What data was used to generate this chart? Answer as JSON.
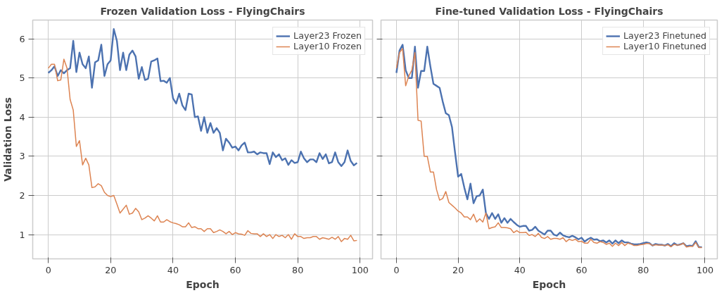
{
  "chart_data": [
    {
      "type": "line",
      "title": "Frozen Validation Loss - FlyingChairs",
      "xlabel": "Epoch",
      "ylabel": "Validation Loss",
      "x": [
        0,
        1,
        2,
        3,
        4,
        5,
        6,
        7,
        8,
        9,
        10,
        11,
        12,
        13,
        14,
        15,
        16,
        17,
        18,
        19,
        20,
        21,
        22,
        23,
        24,
        25,
        26,
        27,
        28,
        29,
        30,
        31,
        32,
        33,
        34,
        35,
        36,
        37,
        38,
        39,
        40,
        41,
        42,
        43,
        44,
        45,
        46,
        47,
        48,
        49,
        50,
        51,
        52,
        53,
        54,
        55,
        56,
        57,
        58,
        59,
        60,
        61,
        62,
        63,
        64,
        65,
        66,
        67,
        68,
        69,
        70,
        71,
        72,
        73,
        74,
        75,
        76,
        77,
        78,
        79,
        80,
        81,
        82,
        83,
        84,
        85,
        86,
        87,
        88,
        89,
        90,
        91,
        92,
        93,
        94,
        95,
        96,
        97,
        98,
        99
      ],
      "series": [
        {
          "name": "Layer23 Frozen",
          "color": "#4c72b0",
          "values": [
            5.13,
            5.2,
            5.3,
            5.05,
            5.2,
            5.12,
            5.2,
            5.25,
            5.95,
            5.15,
            5.65,
            5.35,
            5.25,
            5.55,
            4.75,
            5.4,
            5.45,
            5.85,
            5.05,
            5.35,
            5.45,
            6.25,
            5.95,
            5.2,
            5.65,
            5.2,
            5.6,
            5.7,
            5.55,
            4.98,
            5.28,
            4.95,
            4.98,
            5.42,
            5.45,
            5.5,
            4.92,
            4.93,
            4.88,
            5.0,
            4.48,
            4.35,
            4.6,
            4.3,
            4.18,
            4.6,
            4.58,
            4.0,
            4.02,
            3.65,
            4.0,
            3.6,
            3.85,
            3.6,
            3.72,
            3.6,
            3.15,
            3.45,
            3.35,
            3.22,
            3.25,
            3.15,
            3.28,
            3.35,
            3.1,
            3.1,
            3.12,
            3.05,
            3.1,
            3.08,
            3.08,
            2.8,
            3.1,
            2.98,
            3.05,
            2.9,
            2.95,
            2.78,
            2.9,
            2.83,
            2.85,
            3.12,
            2.95,
            2.85,
            2.92,
            2.92,
            2.85,
            3.08,
            2.93,
            3.05,
            2.82,
            2.85,
            3.1,
            2.85,
            2.75,
            2.85,
            3.15,
            2.88,
            2.77,
            2.83
          ]
        },
        {
          "name": "Layer10 Frozen",
          "color": "#dd8452",
          "values": [
            5.25,
            5.35,
            5.35,
            4.93,
            4.95,
            5.48,
            5.25,
            4.45,
            4.18,
            3.25,
            3.4,
            2.78,
            2.95,
            2.78,
            2.2,
            2.22,
            2.3,
            2.25,
            2.08,
            2.0,
            1.97,
            2.0,
            1.78,
            1.55,
            1.65,
            1.75,
            1.52,
            1.55,
            1.67,
            1.58,
            1.38,
            1.42,
            1.48,
            1.42,
            1.35,
            1.48,
            1.32,
            1.32,
            1.38,
            1.33,
            1.3,
            1.28,
            1.25,
            1.2,
            1.2,
            1.3,
            1.18,
            1.2,
            1.15,
            1.15,
            1.08,
            1.15,
            1.15,
            1.05,
            1.08,
            1.12,
            1.08,
            1.02,
            1.08,
            1.0,
            1.05,
            1.02,
            1.01,
            0.98,
            1.1,
            1.03,
            1.02,
            1.02,
            0.95,
            1.02,
            0.95,
            1.0,
            0.9,
            1.0,
            0.95,
            0.98,
            0.92,
            1.0,
            0.88,
            1.02,
            0.95,
            0.95,
            0.9,
            0.92,
            0.92,
            0.95,
            0.95,
            0.88,
            0.92,
            0.9,
            0.88,
            0.93,
            0.88,
            0.95,
            0.82,
            0.9,
            0.88,
            0.98,
            0.84,
            0.85
          ]
        }
      ],
      "xlim": [
        -5,
        104
      ],
      "ylim": [
        0.38,
        6.48
      ],
      "xticks": [
        0,
        20,
        40,
        60,
        80,
        100
      ],
      "yticks": [
        1,
        2,
        3,
        4,
        5,
        6
      ],
      "grid": true,
      "legend": "top right",
      "line_style": "solid",
      "marker": "none"
    },
    {
      "type": "line",
      "title": "Fine-tuned Validation Loss - FlyingChairs",
      "xlabel": "Epoch",
      "x": [
        0,
        1,
        2,
        3,
        4,
        5,
        6,
        7,
        8,
        9,
        10,
        11,
        12,
        13,
        14,
        15,
        16,
        17,
        18,
        19,
        20,
        21,
        22,
        23,
        24,
        25,
        26,
        27,
        28,
        29,
        30,
        31,
        32,
        33,
        34,
        35,
        36,
        37,
        38,
        39,
        40,
        41,
        42,
        43,
        44,
        45,
        46,
        47,
        48,
        49,
        50,
        51,
        52,
        53,
        54,
        55,
        56,
        57,
        58,
        59,
        60,
        61,
        62,
        63,
        64,
        65,
        66,
        67,
        68,
        69,
        70,
        71,
        72,
        73,
        74,
        75,
        76,
        77,
        78,
        79,
        80,
        81,
        82,
        83,
        84,
        85,
        86,
        87,
        88,
        89,
        90,
        91,
        92,
        93,
        94,
        95,
        96,
        97,
        98,
        99
      ],
      "series": [
        {
          "name": "Layer23 Finetuned",
          "color": "#4c72b0",
          "values": [
            5.13,
            5.7,
            5.85,
            5.2,
            5.0,
            5.0,
            5.8,
            4.75,
            5.18,
            5.18,
            5.8,
            5.3,
            4.85,
            4.8,
            4.75,
            4.4,
            4.1,
            4.05,
            3.75,
            3.1,
            2.48,
            2.55,
            2.2,
            1.9,
            2.3,
            1.8,
            1.98,
            2.0,
            2.15,
            1.55,
            1.4,
            1.55,
            1.4,
            1.52,
            1.3,
            1.42,
            1.3,
            1.4,
            1.32,
            1.25,
            1.2,
            1.22,
            1.22,
            1.1,
            1.12,
            1.2,
            1.1,
            1.05,
            1.0,
            1.1,
            1.1,
            1.0,
            0.97,
            1.05,
            0.98,
            0.95,
            0.93,
            0.97,
            0.93,
            0.88,
            0.92,
            0.82,
            0.88,
            0.92,
            0.87,
            0.88,
            0.83,
            0.85,
            0.8,
            0.85,
            0.77,
            0.85,
            0.78,
            0.85,
            0.8,
            0.8,
            0.77,
            0.75,
            0.75,
            0.76,
            0.78,
            0.8,
            0.78,
            0.72,
            0.76,
            0.74,
            0.74,
            0.72,
            0.76,
            0.7,
            0.78,
            0.73,
            0.75,
            0.78,
            0.7,
            0.72,
            0.71,
            0.83,
            0.68,
            0.68
          ]
        },
        {
          "name": "Layer10 Finetuned",
          "color": "#dd8452",
          "values": [
            5.25,
            5.65,
            5.75,
            4.8,
            5.05,
            5.2,
            5.65,
            3.92,
            3.9,
            3.0,
            3.0,
            2.6,
            2.6,
            2.15,
            1.88,
            1.92,
            2.1,
            1.82,
            1.75,
            1.68,
            1.6,
            1.55,
            1.45,
            1.45,
            1.38,
            1.52,
            1.32,
            1.4,
            1.32,
            1.55,
            1.15,
            1.18,
            1.2,
            1.3,
            1.18,
            1.18,
            1.17,
            1.15,
            1.05,
            1.1,
            1.05,
            1.05,
            1.06,
            0.98,
            1.0,
            0.95,
            1.03,
            0.93,
            0.9,
            0.95,
            0.88,
            0.9,
            0.9,
            0.88,
            0.92,
            0.82,
            0.88,
            0.85,
            0.88,
            0.82,
            0.83,
            0.78,
            0.78,
            0.88,
            0.8,
            0.78,
            0.82,
            0.8,
            0.75,
            0.78,
            0.7,
            0.78,
            0.72,
            0.8,
            0.72,
            0.78,
            0.76,
            0.72,
            0.72,
            0.74,
            0.75,
            0.77,
            0.77,
            0.72,
            0.74,
            0.73,
            0.73,
            0.72,
            0.74,
            0.69,
            0.75,
            0.73,
            0.74,
            0.78,
            0.68,
            0.7,
            0.7,
            0.8,
            0.67,
            0.67
          ]
        }
      ],
      "xlim": [
        -5,
        104
      ],
      "ylim": [
        0.38,
        6.48
      ],
      "xticks": [
        0,
        20,
        40,
        60,
        80,
        100
      ],
      "yticks": [
        1,
        2,
        3,
        4,
        5,
        6
      ],
      "tick_labels": "x",
      "grid": true,
      "legend": "top right",
      "line_style": "solid",
      "marker": "none"
    }
  ]
}
